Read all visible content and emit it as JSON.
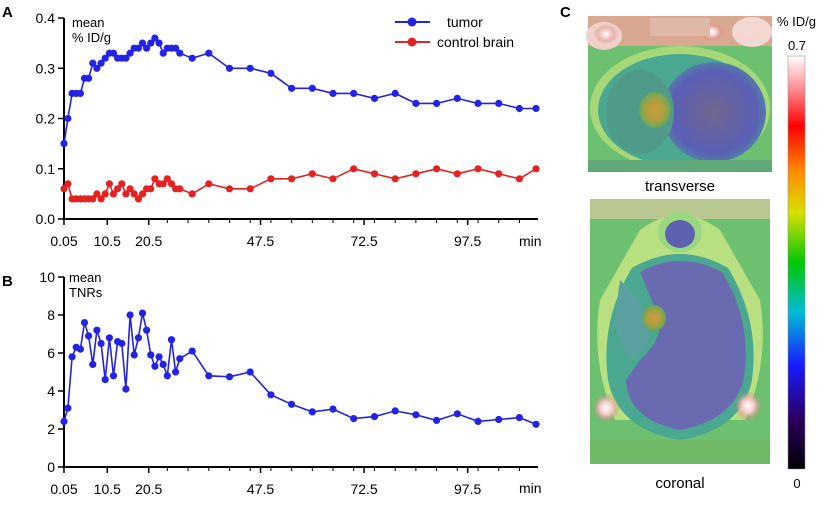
{
  "chart_data": [
    {
      "panel": "A",
      "type": "line",
      "ylabel_lines": [
        "mean",
        "% ID/g"
      ],
      "xlabel": "min",
      "ylim": [
        0,
        0.4
      ],
      "yticks": [
        0.0,
        0.1,
        0.2,
        0.3,
        0.4
      ],
      "ytick_labels": [
        "0.0",
        "0.1",
        "0.2",
        "0.3",
        "0.4"
      ],
      "xlim": [
        0.05,
        114
      ],
      "xticks": [
        0.05,
        10.5,
        20.5,
        47.5,
        72.5,
        97.5
      ],
      "xtick_labels": [
        "0.05",
        "10.5",
        "20.5",
        "47.5",
        "72.5",
        "97.5"
      ],
      "legend": [
        "tumor",
        "control brain"
      ],
      "series": [
        {
          "name": "tumor",
          "color": "#2323e6",
          "x": [
            0.05,
            1,
            2,
            3,
            4,
            5,
            6,
            7,
            8,
            9,
            10,
            11,
            12,
            13,
            14,
            15,
            16,
            17,
            18,
            19,
            20,
            21,
            22,
            23,
            24,
            25,
            26,
            27,
            28,
            31,
            35,
            40,
            45,
            50,
            55,
            60,
            65,
            70,
            75,
            80,
            85,
            90,
            95,
            100,
            105,
            110,
            114
          ],
          "y": [
            0.15,
            0.2,
            0.25,
            0.25,
            0.25,
            0.28,
            0.28,
            0.31,
            0.3,
            0.31,
            0.32,
            0.33,
            0.33,
            0.32,
            0.32,
            0.32,
            0.33,
            0.34,
            0.34,
            0.35,
            0.34,
            0.35,
            0.36,
            0.35,
            0.33,
            0.34,
            0.34,
            0.34,
            0.33,
            0.32,
            0.33,
            0.3,
            0.3,
            0.29,
            0.26,
            0.26,
            0.25,
            0.25,
            0.24,
            0.25,
            0.23,
            0.23,
            0.24,
            0.23,
            0.23,
            0.22,
            0.22
          ]
        },
        {
          "name": "control brain",
          "color": "#e32222",
          "x": [
            0.05,
            1,
            2,
            3,
            4,
            5,
            6,
            7,
            8,
            9,
            10,
            11,
            12,
            13,
            14,
            15,
            16,
            17,
            18,
            19,
            20,
            21,
            22,
            23,
            24,
            25,
            26,
            27,
            28,
            31,
            35,
            40,
            45,
            50,
            55,
            60,
            65,
            70,
            75,
            80,
            85,
            90,
            95,
            100,
            105,
            110,
            114
          ],
          "y": [
            0.06,
            0.07,
            0.04,
            0.04,
            0.04,
            0.04,
            0.04,
            0.04,
            0.05,
            0.04,
            0.05,
            0.07,
            0.05,
            0.06,
            0.07,
            0.05,
            0.06,
            0.05,
            0.04,
            0.05,
            0.06,
            0.06,
            0.08,
            0.07,
            0.07,
            0.08,
            0.07,
            0.06,
            0.06,
            0.05,
            0.07,
            0.06,
            0.06,
            0.08,
            0.08,
            0.09,
            0.08,
            0.1,
            0.09,
            0.08,
            0.09,
            0.1,
            0.09,
            0.1,
            0.09,
            0.08,
            0.1
          ]
        }
      ]
    },
    {
      "panel": "B",
      "type": "line",
      "ylabel_lines": [
        "mean",
        "TNRs"
      ],
      "xlabel": "min",
      "ylim": [
        0,
        10
      ],
      "yticks": [
        0,
        2,
        4,
        6,
        8,
        10
      ],
      "ytick_labels": [
        "0",
        "2",
        "4",
        "6",
        "8",
        "10"
      ],
      "xlim": [
        0.05,
        114
      ],
      "xticks": [
        0.05,
        10.5,
        20.5,
        47.5,
        72.5,
        97.5
      ],
      "xtick_labels": [
        "0.05",
        "10.5",
        "20.5",
        "47.5",
        "72.5",
        "97.5"
      ],
      "series": [
        {
          "name": "TNR",
          "color": "#2323e6",
          "x": [
            0.05,
            1,
            2,
            3,
            4,
            5,
            6,
            7,
            8,
            9,
            10,
            11,
            12,
            13,
            14,
            15,
            16,
            17,
            18,
            19,
            20,
            21,
            22,
            23,
            24,
            25,
            26,
            27,
            28,
            31,
            35,
            40,
            45,
            50,
            55,
            60,
            65,
            70,
            75,
            80,
            85,
            90,
            95,
            100,
            105,
            110,
            114
          ],
          "y": [
            2.4,
            3.1,
            5.8,
            6.3,
            6.2,
            7.6,
            6.9,
            5.4,
            7.2,
            6.5,
            4.6,
            6.8,
            4.8,
            6.6,
            6.5,
            4.1,
            8.0,
            5.9,
            6.8,
            8.1,
            7.2,
            5.9,
            5.3,
            5.8,
            5.4,
            4.8,
            6.7,
            5.0,
            5.7,
            6.1,
            4.8,
            4.75,
            5.0,
            3.8,
            3.3,
            2.9,
            3.05,
            2.55,
            2.65,
            2.95,
            2.75,
            2.45,
            2.8,
            2.4,
            2.5,
            2.6,
            2.25
          ]
        }
      ]
    }
  ],
  "panels": {
    "a": "A",
    "b": "B",
    "c": "C"
  },
  "images": {
    "transverse_label": "transverse",
    "coronal_label": "coronal"
  },
  "colorbar": {
    "unit": "% ID/g",
    "max_label": "0.7",
    "min_label": "0"
  }
}
